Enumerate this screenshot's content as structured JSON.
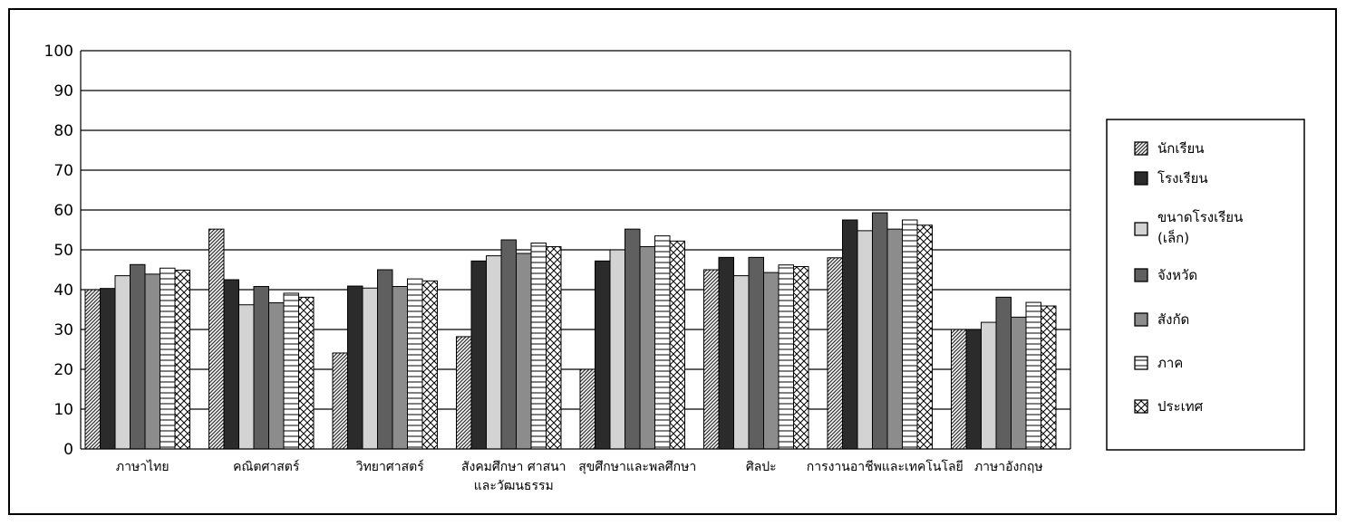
{
  "chart_data": {
    "type": "bar",
    "title": "",
    "xlabel": "",
    "ylabel": "",
    "ylim": [
      0,
      100
    ],
    "yticks": [
      0,
      10,
      20,
      30,
      40,
      50,
      60,
      70,
      80,
      90,
      100
    ],
    "grid": true,
    "legend_position": "right",
    "categories": [
      [
        "ภาษาไทย"
      ],
      [
        "คณิตศาสตร์"
      ],
      [
        "วิทยาศาสตร์"
      ],
      [
        "สังคมศึกษา ศาสนา",
        "และวัฒนธรรม"
      ],
      [
        "สุขศึกษาและพลศึกษา"
      ],
      [
        "ศิลปะ"
      ],
      [
        "การงานอาชีพและเทคโนโลยี"
      ],
      [
        "ภาษาอังกฤษ"
      ]
    ],
    "series": [
      {
        "name": [
          "นักเรียน"
        ],
        "pattern": "diagonal",
        "color": "#6e6e6e",
        "values": [
          40,
          55.2,
          24.1,
          28.2,
          20,
          45,
          48,
          30
        ]
      },
      {
        "name": [
          "โรงเรียน"
        ],
        "pattern": "solid",
        "color": "#2b2b2b",
        "values": [
          40.3,
          42.5,
          40.9,
          47.2,
          47.2,
          48.1,
          57.5,
          30
        ]
      },
      {
        "name": [
          "ขนาดโรงเรียน",
          "(เล็ก)"
        ],
        "pattern": "solid",
        "color": "#d3d3d3",
        "values": [
          43.5,
          36.2,
          40.4,
          48.5,
          50,
          43.5,
          54.8,
          31.8
        ]
      },
      {
        "name": [
          "จังหวัด"
        ],
        "pattern": "solid",
        "color": "#5f5f5f",
        "values": [
          46.3,
          40.8,
          45,
          52.5,
          55.2,
          48.1,
          59.3,
          38.1
        ]
      },
      {
        "name": [
          "สังกัด"
        ],
        "pattern": "solid",
        "color": "#8c8c8c",
        "values": [
          43.9,
          36.7,
          40.8,
          49.1,
          50.8,
          44.3,
          55.2,
          33.1
        ]
      },
      {
        "name": [
          "ภาค"
        ],
        "pattern": "hlines",
        "color": "#ffffff",
        "values": [
          45.4,
          39.1,
          42.7,
          51.7,
          53.5,
          46.2,
          57.5,
          36.8
        ]
      },
      {
        "name": [
          "ประเทศ"
        ],
        "pattern": "cross",
        "color": "#ffffff",
        "values": [
          44.9,
          38.1,
          42.2,
          50.8,
          52.2,
          45.8,
          56.2,
          35.9
        ]
      }
    ]
  }
}
